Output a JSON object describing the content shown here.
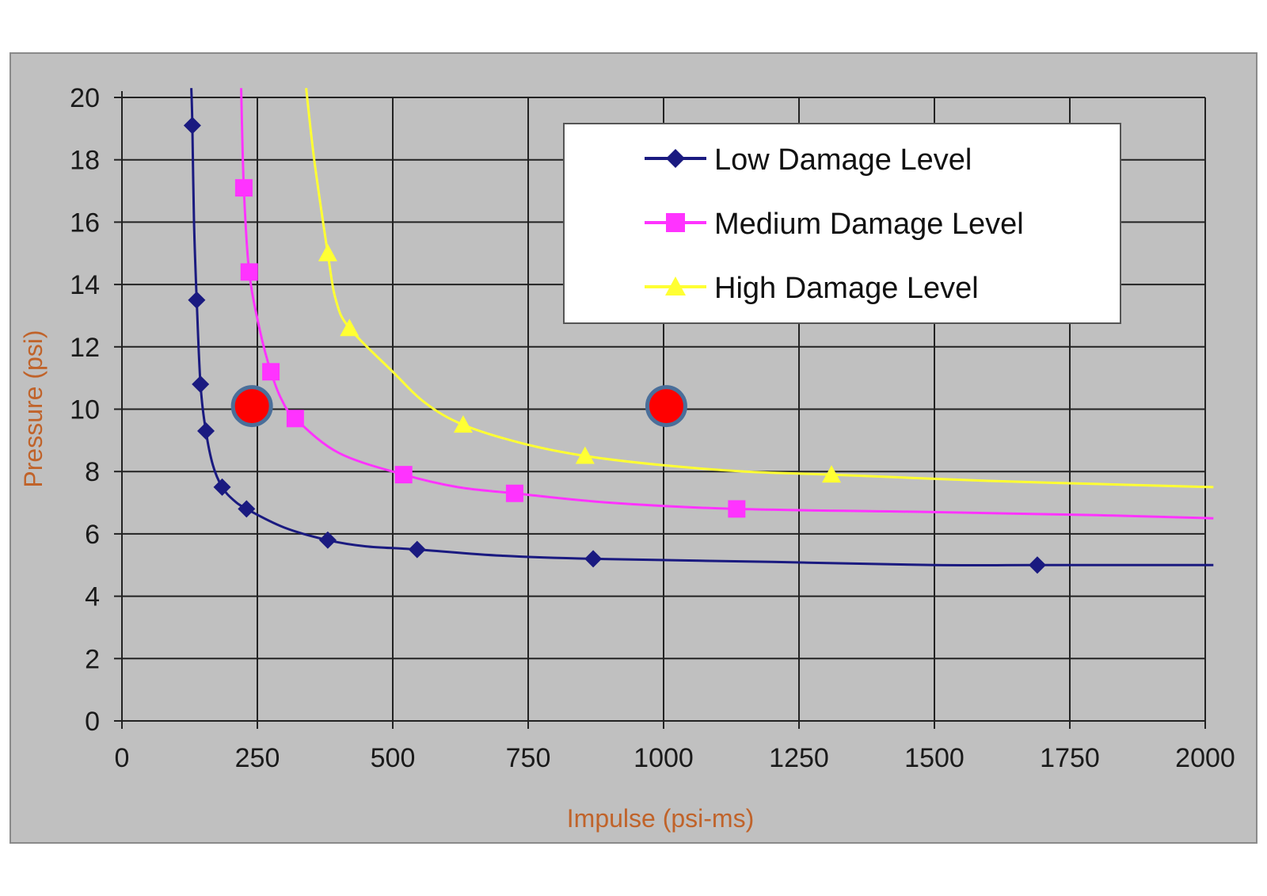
{
  "chart_data": {
    "type": "line",
    "xlabel": "Impulse (psi-ms)",
    "ylabel": "Pressure (psi)",
    "xlim": [
      0,
      2000
    ],
    "ylim": [
      0,
      20
    ],
    "x_ticks": [
      "0",
      "250",
      "500",
      "750",
      "1000",
      "1250",
      "1500",
      "1750",
      "2000"
    ],
    "y_ticks": [
      "0",
      "2",
      "4",
      "6",
      "8",
      "10",
      "12",
      "14",
      "16",
      "18",
      "20"
    ],
    "grid": true,
    "legend_position": "top-right",
    "series": [
      {
        "name": "Low Damage Level",
        "color": "#1a1a80",
        "marker": "diamond",
        "points": [
          [
            130,
            19.1
          ],
          [
            138,
            13.5
          ],
          [
            145,
            10.8
          ],
          [
            155,
            9.3
          ],
          [
            185,
            7.5
          ],
          [
            230,
            6.8
          ],
          [
            380,
            5.8
          ],
          [
            545,
            5.5
          ],
          [
            870,
            5.2
          ],
          [
            1690,
            5.0
          ]
        ],
        "curve": [
          [
            128,
            20.3
          ],
          [
            130,
            19.1
          ],
          [
            133,
            16
          ],
          [
            138,
            13.5
          ],
          [
            145,
            10.8
          ],
          [
            155,
            9.3
          ],
          [
            168,
            8.2
          ],
          [
            185,
            7.5
          ],
          [
            205,
            7.1
          ],
          [
            230,
            6.8
          ],
          [
            300,
            6.2
          ],
          [
            380,
            5.8
          ],
          [
            450,
            5.6
          ],
          [
            545,
            5.5
          ],
          [
            700,
            5.3
          ],
          [
            870,
            5.2
          ],
          [
            1200,
            5.1
          ],
          [
            1500,
            5.0
          ],
          [
            1690,
            5.0
          ],
          [
            2015,
            5.0
          ]
        ]
      },
      {
        "name": "Medium Damage Level",
        "color": "#ff33ff",
        "marker": "square",
        "points": [
          [
            225,
            17.1
          ],
          [
            235,
            14.4
          ],
          [
            275,
            11.2
          ],
          [
            320,
            9.7
          ],
          [
            520,
            7.9
          ],
          [
            725,
            7.3
          ],
          [
            1135,
            6.8
          ]
        ],
        "curve": [
          [
            220,
            20.3
          ],
          [
            225,
            17.1
          ],
          [
            235,
            14.4
          ],
          [
            255,
            12.5
          ],
          [
            275,
            11.2
          ],
          [
            295,
            10.3
          ],
          [
            320,
            9.7
          ],
          [
            400,
            8.6
          ],
          [
            520,
            7.9
          ],
          [
            620,
            7.5
          ],
          [
            725,
            7.3
          ],
          [
            900,
            7.0
          ],
          [
            1135,
            6.8
          ],
          [
            1500,
            6.7
          ],
          [
            1800,
            6.6
          ],
          [
            2015,
            6.5
          ]
        ]
      },
      {
        "name": "High Damage Level",
        "color": "#ffff33",
        "marker": "triangle",
        "points": [
          [
            380,
            15.0
          ],
          [
            420,
            12.6
          ],
          [
            630,
            9.5
          ],
          [
            855,
            8.5
          ],
          [
            1310,
            7.9
          ]
        ],
        "curve": [
          [
            340,
            20.3
          ],
          [
            355,
            18
          ],
          [
            380,
            15.0
          ],
          [
            395,
            13.5
          ],
          [
            420,
            12.6
          ],
          [
            500,
            11.2
          ],
          [
            560,
            10.2
          ],
          [
            630,
            9.5
          ],
          [
            740,
            8.9
          ],
          [
            855,
            8.5
          ],
          [
            1000,
            8.2
          ],
          [
            1150,
            8.0
          ],
          [
            1310,
            7.9
          ],
          [
            1600,
            7.7
          ],
          [
            1800,
            7.6
          ],
          [
            2015,
            7.5
          ]
        ]
      }
    ],
    "highlight_points": {
      "color": "#ff0000",
      "points": [
        [
          240,
          10.1
        ],
        [
          1005,
          10.1
        ]
      ]
    }
  }
}
